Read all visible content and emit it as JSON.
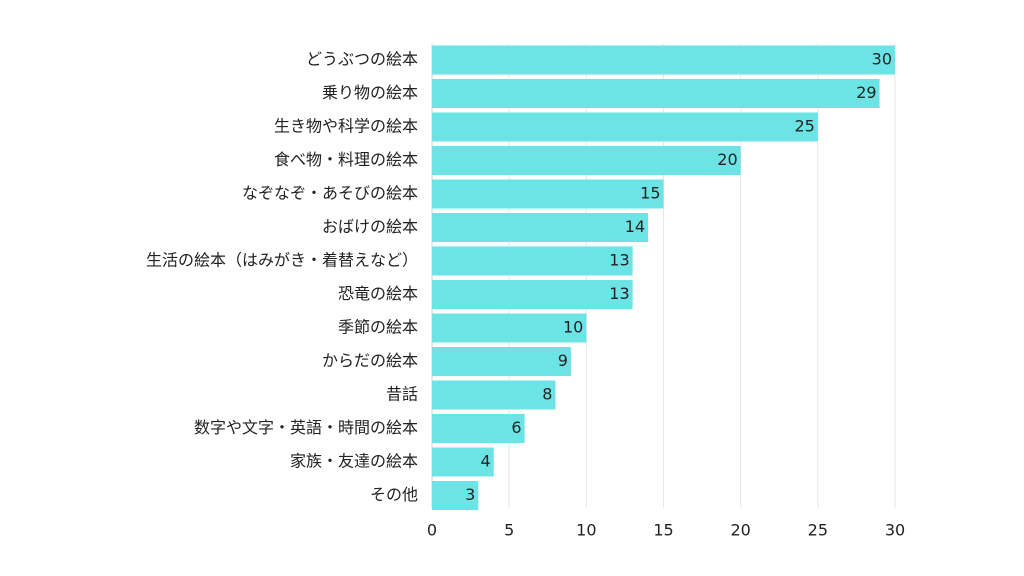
{
  "colors": {
    "bar": "#6ce4e6",
    "grid": "#e6e6e6",
    "text": "#222222"
  },
  "chart_data": {
    "type": "bar",
    "orientation": "horizontal",
    "title": "",
    "xlabel": "",
    "ylabel": "",
    "xlim": [
      0,
      30
    ],
    "grid": true,
    "xticks": [
      0,
      5,
      10,
      15,
      20,
      25,
      30
    ],
    "categories": [
      "どうぶつの絵本",
      "乗り物の絵本",
      "生き物や科学の絵本",
      "食べ物・料理の絵本",
      "なぞなぞ・あそびの絵本",
      "おばけの絵本",
      "生活の絵本（はみがき・着替えなど）",
      "恐竜の絵本",
      "季節の絵本",
      "からだの絵本",
      "昔話",
      "数字や文字・英語・時間の絵本",
      "家族・友達の絵本",
      "その他"
    ],
    "values": [
      30,
      29,
      25,
      20,
      15,
      14,
      13,
      13,
      10,
      9,
      8,
      6,
      4,
      3
    ]
  }
}
